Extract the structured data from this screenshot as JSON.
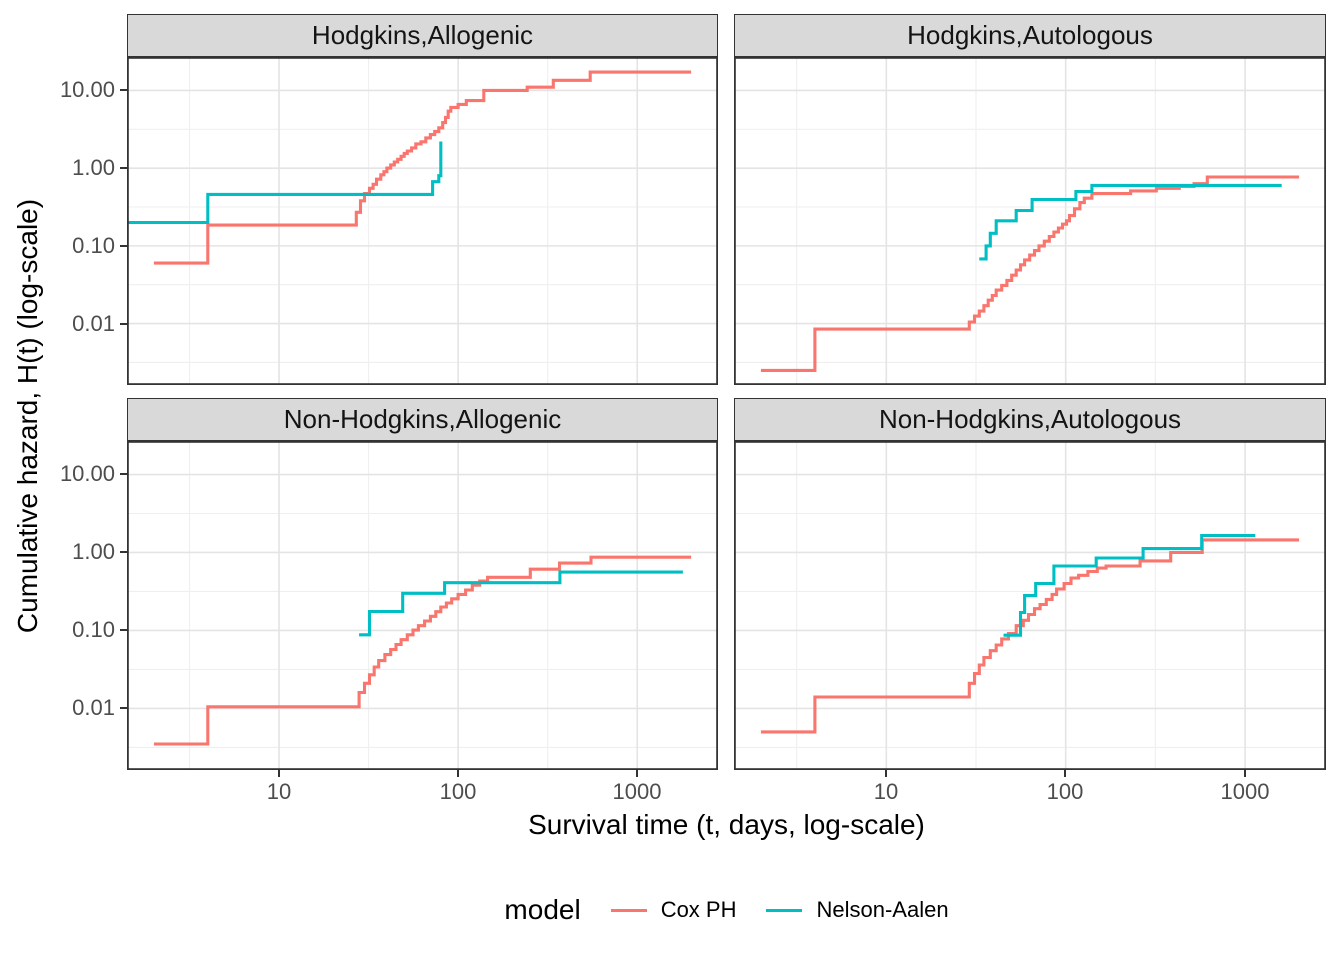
{
  "figure": {
    "background": "#FFFFFF"
  },
  "axes": {
    "x": {
      "title": "Survival time (t, days, log-scale)",
      "tick_labels": [
        "10",
        "100",
        "1000"
      ],
      "tick_logs": [
        1,
        2,
        3
      ],
      "minor_logs": [
        0.5,
        1.5,
        2.5
      ],
      "domain_log": [
        0.151,
        3.451
      ]
    },
    "y": {
      "title": "Cumulative hazard, H(t) (log-scale)",
      "tick_labels": [
        "10.00",
        "1.00",
        "0.10",
        "0.01"
      ],
      "tick_logs": [
        1,
        0,
        -1,
        -2
      ],
      "minor_logs": [
        0.5,
        -0.5,
        -1.5,
        -2.5
      ],
      "domain_log": [
        -2.79,
        1.43
      ]
    }
  },
  "legend": {
    "title": "model",
    "entries": [
      {
        "label": "Cox PH",
        "color": "#F8766D"
      },
      {
        "label": "Nelson-Aalen",
        "color": "#00BFC4"
      }
    ]
  },
  "style": {
    "strip_fill": "#D9D9D9",
    "panel_border": "#333333",
    "grid_major": "#E4E4E4",
    "grid_minor": "#EFEFEF",
    "tick_text": "#4D4D4D"
  },
  "chart_data": {
    "type": "line",
    "subtype": "step-cumulative-hazard",
    "x_scale": "log10",
    "y_scale": "log10",
    "facets": [
      {
        "title": "Hodgkins,Allogenic",
        "series": [
          {
            "name": "Cox PH",
            "color": "#F8766D",
            "end_t": 2000,
            "points": [
              [
                2,
                0.06
              ],
              [
                4,
                0.185
              ],
              [
                27,
                0.27
              ],
              [
                28.5,
                0.38
              ],
              [
                30,
                0.47
              ],
              [
                32,
                0.55
              ],
              [
                33.5,
                0.62
              ],
              [
                35,
                0.72
              ],
              [
                37,
                0.82
              ],
              [
                38.5,
                0.9
              ],
              [
                40,
                1.0
              ],
              [
                42,
                1.1
              ],
              [
                44,
                1.2
              ],
              [
                46,
                1.3
              ],
              [
                48,
                1.42
              ],
              [
                50,
                1.55
              ],
              [
                52,
                1.66
              ],
              [
                55,
                1.82
              ],
              [
                58,
                2.05
              ],
              [
                62,
                2.18
              ],
              [
                66,
                2.45
              ],
              [
                70,
                2.7
              ],
              [
                74,
                2.95
              ],
              [
                78,
                3.3
              ],
              [
                82,
                3.85
              ],
              [
                85,
                4.5
              ],
              [
                88,
                5.4
              ],
              [
                91,
                6.05
              ],
              [
                100,
                6.6
              ],
              [
                111,
                7.4
              ],
              [
                139,
                10.0
              ],
              [
                243,
                11.0
              ],
              [
                340,
                13.5
              ],
              [
                546,
                17.2
              ]
            ]
          },
          {
            "name": "Nelson-Aalen",
            "color": "#00BFC4",
            "end_t": 80,
            "points": [
              [
                1.42,
                0.2
              ],
              [
                4,
                0.46
              ],
              [
                72,
                0.67
              ],
              [
                78,
                0.8
              ],
              [
                80,
                2.2
              ]
            ]
          }
        ]
      },
      {
        "title": "Hodgkins,Autologous",
        "series": [
          {
            "name": "Cox PH",
            "color": "#F8766D",
            "end_t": 2000,
            "points": [
              [
                2,
                0.0025
              ],
              [
                4,
                0.0085
              ],
              [
                29,
                0.0105
              ],
              [
                31,
                0.0125
              ],
              [
                33,
                0.0145
              ],
              [
                35,
                0.017
              ],
              [
                37,
                0.02
              ],
              [
                39,
                0.023
              ],
              [
                41,
                0.027
              ],
              [
                44,
                0.031
              ],
              [
                47,
                0.036
              ],
              [
                50,
                0.042
              ],
              [
                53,
                0.049
              ],
              [
                56,
                0.057
              ],
              [
                59,
                0.066
              ],
              [
                63,
                0.076
              ],
              [
                67,
                0.087
              ],
              [
                71,
                0.1
              ],
              [
                76,
                0.115
              ],
              [
                81,
                0.132
              ],
              [
                86,
                0.151
              ],
              [
                91,
                0.17
              ],
              [
                96,
                0.19
              ],
              [
                101,
                0.21
              ],
              [
                105,
                0.245
              ],
              [
                112,
                0.3
              ],
              [
                120,
                0.36
              ],
              [
                127,
                0.41
              ],
              [
                140,
                0.47
              ],
              [
                230,
                0.51
              ],
              [
                320,
                0.55
              ],
              [
                430,
                0.58
              ],
              [
                520,
                0.63
              ],
              [
                616,
                0.77
              ]
            ]
          },
          {
            "name": "Nelson-Aalen",
            "color": "#00BFC4",
            "end_t": 1600,
            "points": [
              [
                33,
                0.068
              ],
              [
                36,
                0.1
              ],
              [
                38,
                0.145
              ],
              [
                41,
                0.21
              ],
              [
                53,
                0.285
              ],
              [
                65,
                0.395
              ],
              [
                114,
                0.5
              ],
              [
                140,
                0.6
              ]
            ]
          }
        ]
      },
      {
        "title": "Non-Hodgkins,Allogenic",
        "series": [
          {
            "name": "Cox PH",
            "color": "#F8766D",
            "end_t": 2000,
            "points": [
              [
                2,
                0.0035
              ],
              [
                4,
                0.0105
              ],
              [
                28,
                0.016
              ],
              [
                30,
                0.021
              ],
              [
                32,
                0.027
              ],
              [
                34,
                0.034
              ],
              [
                36,
                0.041
              ],
              [
                39,
                0.049
              ],
              [
                42,
                0.057
              ],
              [
                45,
                0.066
              ],
              [
                48,
                0.076
              ],
              [
                52,
                0.088
              ],
              [
                56,
                0.101
              ],
              [
                60,
                0.115
              ],
              [
                65,
                0.132
              ],
              [
                70,
                0.152
              ],
              [
                75,
                0.174
              ],
              [
                80,
                0.2
              ],
              [
                86,
                0.225
              ],
              [
                92,
                0.255
              ],
              [
                100,
                0.29
              ],
              [
                110,
                0.33
              ],
              [
                120,
                0.38
              ],
              [
                132,
                0.43
              ],
              [
                146,
                0.48
              ],
              [
                253,
                0.61
              ],
              [
                368,
                0.73
              ],
              [
                552,
                0.87
              ]
            ]
          },
          {
            "name": "Nelson-Aalen",
            "color": "#00BFC4",
            "end_t": 1800,
            "points": [
              [
                28,
                0.088
              ],
              [
                32,
                0.175
              ],
              [
                49,
                0.3
              ],
              [
                84,
                0.41
              ],
              [
                370,
                0.56
              ]
            ]
          }
        ]
      },
      {
        "title": "Non-Hodgkins,Autologous",
        "series": [
          {
            "name": "Cox PH",
            "color": "#F8766D",
            "end_t": 2000,
            "points": [
              [
                2,
                0.005
              ],
              [
                4,
                0.014
              ],
              [
                29,
                0.021
              ],
              [
                31,
                0.028
              ],
              [
                33,
                0.036
              ],
              [
                35,
                0.045
              ],
              [
                38,
                0.055
              ],
              [
                41,
                0.065
              ],
              [
                44,
                0.078
              ],
              [
                48,
                0.091
              ],
              [
                53,
                0.115
              ],
              [
                58,
                0.135
              ],
              [
                62,
                0.16
              ],
              [
                67,
                0.19
              ],
              [
                72,
                0.215
              ],
              [
                78,
                0.25
              ],
              [
                84,
                0.29
              ],
              [
                89,
                0.34
              ],
              [
                98,
                0.4
              ],
              [
                107,
                0.47
              ],
              [
                118,
                0.51
              ],
              [
                133,
                0.57
              ],
              [
                150,
                0.63
              ],
              [
                168,
                0.67
              ],
              [
                260,
                0.78
              ],
              [
                385,
                1.0
              ],
              [
                577,
                1.45
              ]
            ]
          },
          {
            "name": "Nelson-Aalen",
            "color": "#00BFC4",
            "end_t": 1140,
            "points": [
              [
                45,
                0.087
              ],
              [
                56,
                0.17
              ],
              [
                59,
                0.28
              ],
              [
                68,
                0.4
              ],
              [
                86,
                0.67
              ],
              [
                148,
                0.85
              ],
              [
                270,
                1.12
              ],
              [
                573,
                1.65
              ]
            ]
          }
        ]
      }
    ]
  }
}
